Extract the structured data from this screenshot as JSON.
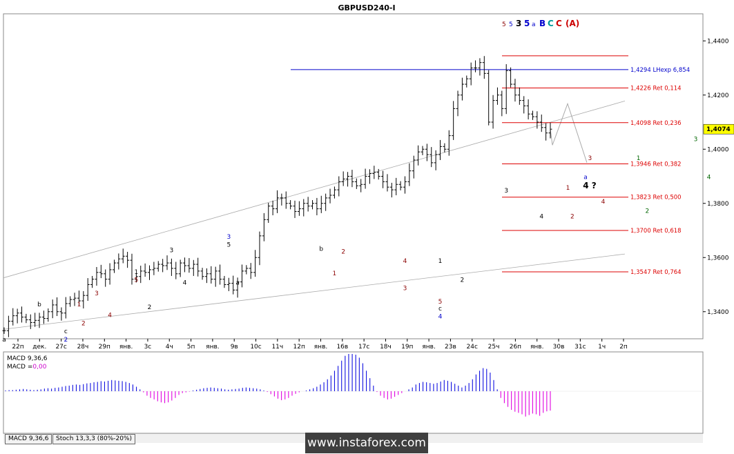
{
  "title": "GBPUSD240-I",
  "chart_data": {
    "type": "candlestick",
    "symbol": "GBPUSD240-I",
    "ylim": [
      1.33,
      1.45
    ],
    "y_ticks": [
      "1,4400",
      "1,4200",
      "1,4000",
      "1,3800",
      "1,3600",
      "1,3400"
    ],
    "current_price": "1,4074",
    "x_ticks": [
      "22п",
      "дек.",
      "27с",
      "28ч",
      "29п",
      "янв.",
      "3с",
      "4ч",
      "5п",
      "янв.",
      "9в",
      "10с",
      "11ч",
      "12п",
      "янв.",
      "16в",
      "17с",
      "18ч",
      "19п",
      "янв.",
      "23в",
      "24с",
      "25ч",
      "26п",
      "янв.",
      "30в",
      "31с",
      "1ч",
      "2п"
    ],
    "price_path": [
      1.333,
      1.3365,
      1.3385,
      1.3395,
      1.338,
      1.337,
      1.336,
      1.3368,
      1.338,
      1.3375,
      1.34,
      1.3425,
      1.34,
      1.3395,
      1.343,
      1.3445,
      1.345,
      1.344,
      1.346,
      1.35,
      1.352,
      1.3545,
      1.354,
      1.352,
      1.3555,
      1.358,
      1.3595,
      1.3605,
      1.359,
      1.352,
      1.353,
      1.355,
      1.3545,
      1.3555,
      1.356,
      1.3575,
      1.357,
      1.358,
      1.356,
      1.354,
      1.358,
      1.357,
      1.356,
      1.3575,
      1.355,
      1.353,
      1.354,
      1.352,
      1.355,
      1.352,
      1.35,
      1.3505,
      1.348,
      1.351,
      1.355,
      1.356,
      1.3545,
      1.36,
      1.368,
      1.374,
      1.379,
      1.378,
      1.382,
      1.382,
      1.38,
      1.379,
      1.377,
      1.378,
      1.38,
      1.379,
      1.38,
      1.378,
      1.38,
      1.382,
      1.383,
      1.385,
      1.388,
      1.389,
      1.39,
      1.388,
      1.3865,
      1.387,
      1.39,
      1.391,
      1.3915,
      1.39,
      1.388,
      1.386,
      1.385,
      1.387,
      1.386,
      1.388,
      1.392,
      1.396,
      1.399,
      1.4,
      1.398,
      1.395,
      1.398,
      1.401,
      1.4,
      1.405,
      1.415,
      1.42,
      1.424,
      1.426,
      1.43,
      1.43,
      1.432,
      1.428,
      1.41,
      1.418,
      1.42,
      1.415,
      1.429,
      1.424,
      1.42,
      1.418,
      1.416,
      1.413,
      1.412,
      1.41,
      1.408,
      1.406,
      1.4074
    ],
    "levels": [
      {
        "label": "1,4294 LHexp 6,854",
        "value": 1.4294,
        "color": "#0000cc"
      },
      {
        "label": "1,4226 Ret 0,114",
        "value": 1.4226,
        "color": "#dd0000"
      },
      {
        "label": "1,4098 Ret 0,236",
        "value": 1.4098,
        "color": "#dd0000"
      },
      {
        "label": "1,3946 Ret 0,382",
        "value": 1.3946,
        "color": "#dd0000"
      },
      {
        "label": "1,3823 Ret 0,500",
        "value": 1.3823,
        "color": "#dd0000"
      },
      {
        "label": "1,3700 Ret 0,618",
        "value": 1.37,
        "color": "#dd0000"
      },
      {
        "label": "1,3547 Ret 0,764",
        "value": 1.3547,
        "color": "#dd0000"
      }
    ],
    "top_level": {
      "value": 1.4345,
      "color": "#dd0000"
    },
    "wave_labels": [
      {
        "t": "a",
        "i": 0,
        "v": 1.329,
        "c": "#000"
      },
      {
        "t": "b",
        "i": 8,
        "v": 1.342,
        "c": "#000"
      },
      {
        "t": "c",
        "i": 14,
        "v": 1.332,
        "c": "#000"
      },
      {
        "t": "2",
        "i": 14,
        "v": 1.329,
        "c": "#0000cc"
      },
      {
        "t": "1",
        "i": 17,
        "v": 1.342,
        "c": "#8b0000"
      },
      {
        "t": "2",
        "i": 18,
        "v": 1.335,
        "c": "#8b0000"
      },
      {
        "t": "3",
        "i": 21,
        "v": 1.346,
        "c": "#8b0000"
      },
      {
        "t": "4",
        "i": 24,
        "v": 1.338,
        "c": "#8b0000"
      },
      {
        "t": "5",
        "i": 30,
        "v": 1.351,
        "c": "#8b0000"
      },
      {
        "t": "1",
        "i": 30,
        "v": 1.354,
        "c": "#000"
      },
      {
        "t": "2",
        "i": 33,
        "v": 1.341,
        "c": "#000"
      },
      {
        "t": "3",
        "i": 38,
        "v": 1.362,
        "c": "#000"
      },
      {
        "t": "4",
        "i": 41,
        "v": 1.35,
        "c": "#000"
      },
      {
        "t": "5",
        "i": 51,
        "v": 1.364,
        "c": "#000"
      },
      {
        "t": "3",
        "i": 51,
        "v": 1.367,
        "c": "#0000cc"
      },
      {
        "t": "a",
        "i": 53,
        "v": 1.35,
        "c": "#000"
      },
      {
        "t": "b",
        "i": 72,
        "v": 1.3625,
        "c": "#000"
      },
      {
        "t": "2",
        "i": 77,
        "v": 1.3615,
        "c": "#8b0000"
      },
      {
        "t": "1",
        "i": 75,
        "v": 1.3535,
        "c": "#8b0000"
      },
      {
        "t": "4",
        "i": 91,
        "v": 1.358,
        "c": "#8b0000"
      },
      {
        "t": "3",
        "i": 91,
        "v": 1.348,
        "c": "#8b0000"
      },
      {
        "t": "1",
        "i": 99,
        "v": 1.358,
        "c": "#000"
      },
      {
        "t": "2",
        "i": 104,
        "v": 1.351,
        "c": "#000"
      },
      {
        "t": "5",
        "i": 99,
        "v": 1.343,
        "c": "#8b0000"
      },
      {
        "t": "c",
        "i": 99,
        "v": 1.3405,
        "c": "#000"
      },
      {
        "t": "4",
        "i": 99,
        "v": 1.3375,
        "c": "#0000cc"
      },
      {
        "t": "3",
        "i": 114,
        "v": 1.384,
        "c": "#000"
      },
      {
        "t": "4",
        "i": 122,
        "v": 1.3745,
        "c": "#000"
      },
      {
        "t": "2",
        "i": 129,
        "v": 1.3745,
        "c": "#8b0000"
      },
      {
        "t": "1",
        "i": 128,
        "v": 1.385,
        "c": "#8b0000"
      },
      {
        "t": "3",
        "i": 133,
        "v": 1.396,
        "c": "#8b0000"
      },
      {
        "t": "4",
        "i": 136,
        "v": 1.38,
        "c": "#8b0000"
      },
      {
        "t": "1",
        "i": 144,
        "v": 1.396,
        "c": "#006600"
      },
      {
        "t": "2",
        "i": 146,
        "v": 1.3765,
        "c": "#006600"
      },
      {
        "t": "3",
        "i": 157,
        "v": 1.403,
        "c": "#006600"
      },
      {
        "t": "4",
        "i": 160,
        "v": 1.389,
        "c": "#006600"
      },
      {
        "t": "5",
        "i": 177,
        "v": 1.437,
        "c": "#006600"
      },
      {
        "t": "5",
        "i": 177,
        "v": 1.44,
        "c": "#8b0000"
      }
    ],
    "top_labels": [
      {
        "t": "5",
        "c": "#8b0000",
        "bold": false
      },
      {
        "t": "5",
        "c": "#0000cc",
        "bold": false
      },
      {
        "t": "3",
        "c": "#000000",
        "bold": true
      },
      {
        "t": "5",
        "c": "#0000cc",
        "bold": true
      },
      {
        "t": "a",
        "c": "#0000cc",
        "bold": false
      },
      {
        "t": "B",
        "c": "#0000cc",
        "bold": true
      },
      {
        "t": "C",
        "c": "#009999",
        "bold": true
      },
      {
        "t": "C",
        "c": "#cc0000",
        "bold": true
      },
      {
        "t": "(A)",
        "c": "#cc0000",
        "bold": true
      }
    ],
    "forecast_labels": [
      {
        "t": "a",
        "c": "#0000cc"
      },
      {
        "t": "4 ?",
        "c": "#000000"
      }
    ],
    "macd": {
      "label1": "MACD 9,36,6",
      "label2_prefix": "MACD =",
      "label2_value": "0,00",
      "values": [
        0.02,
        0.03,
        0.03,
        0.04,
        0.05,
        0.06,
        0.05,
        0.04,
        0.03,
        0.04,
        0.05,
        0.07,
        0.08,
        0.07,
        0.09,
        0.1,
        0.12,
        0.14,
        0.15,
        0.17,
        0.18,
        0.17,
        0.19,
        0.21,
        0.22,
        0.24,
        0.25,
        0.27,
        0.26,
        0.28,
        0.3,
        0.29,
        0.28,
        0.27,
        0.25,
        0.22,
        0.18,
        0.12,
        0.05,
        -0.03,
        -0.12,
        -0.18,
        -0.22,
        -0.27,
        -0.3,
        -0.32,
        -0.3,
        -0.25,
        -0.18,
        -0.1,
        -0.05,
        -0.03,
        -0.01,
        0.02,
        0.04,
        0.06,
        0.08,
        0.09,
        0.1,
        0.09,
        0.08,
        0.07,
        0.05,
        0.04,
        0.05,
        0.06,
        0.07,
        0.09,
        0.1,
        0.09,
        0.08,
        0.07,
        0.05,
        0.02,
        -0.02,
        -0.08,
        -0.14,
        -0.2,
        -0.24,
        -0.22,
        -0.18,
        -0.12,
        -0.07,
        -0.03,
        0.0,
        0.02,
        0.05,
        0.08,
        0.12,
        0.18,
        0.24,
        0.32,
        0.42,
        0.55,
        0.68,
        0.82,
        0.95,
        1.0,
        1.0,
        0.98,
        0.9,
        0.75,
        0.55,
        0.35,
        0.15,
        -0.02,
        -0.12,
        -0.18,
        -0.22,
        -0.2,
        -0.15,
        -0.1,
        -0.05,
        0.0,
        0.05,
        0.1,
        0.18,
        0.22,
        0.25,
        0.24,
        0.22,
        0.2,
        0.22,
        0.26,
        0.3,
        0.28,
        0.25,
        0.2,
        0.15,
        0.1,
        0.15,
        0.22,
        0.32,
        0.45,
        0.55,
        0.62,
        0.6,
        0.5,
        0.3,
        0.05,
        -0.18,
        -0.32,
        -0.42,
        -0.5,
        -0.55,
        -0.58,
        -0.62,
        -0.68,
        -0.64,
        -0.6,
        -0.62,
        -0.66,
        -0.58,
        -0.54,
        -0.52
      ]
    }
  },
  "tabs": [
    "MACD 9,36,6",
    "Stoch 13,3,3 (80%-20%)"
  ],
  "watermark": "www.instaforex.com"
}
